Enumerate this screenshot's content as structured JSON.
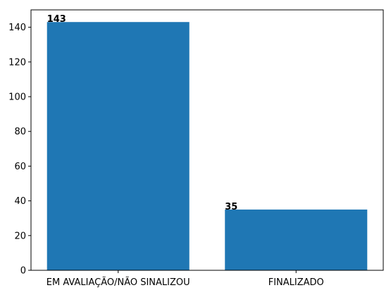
{
  "chart_data": {
    "type": "bar",
    "categories": [
      "EM AVALIAÇÃO/NÃO SINALIZOU",
      "FINALIZADO"
    ],
    "values": [
      143,
      35
    ],
    "data_labels": [
      "143",
      "35"
    ],
    "title": "",
    "xlabel": "",
    "ylabel": "",
    "ylim": [
      0,
      150
    ],
    "yticks": [
      0,
      20,
      40,
      60,
      80,
      100,
      120,
      140
    ],
    "ytick_labels": [
      "0",
      "20",
      "40",
      "60",
      "80",
      "100",
      "120",
      "140"
    ],
    "bar_color": "#1f77b4",
    "grid": false,
    "legend": "none"
  }
}
